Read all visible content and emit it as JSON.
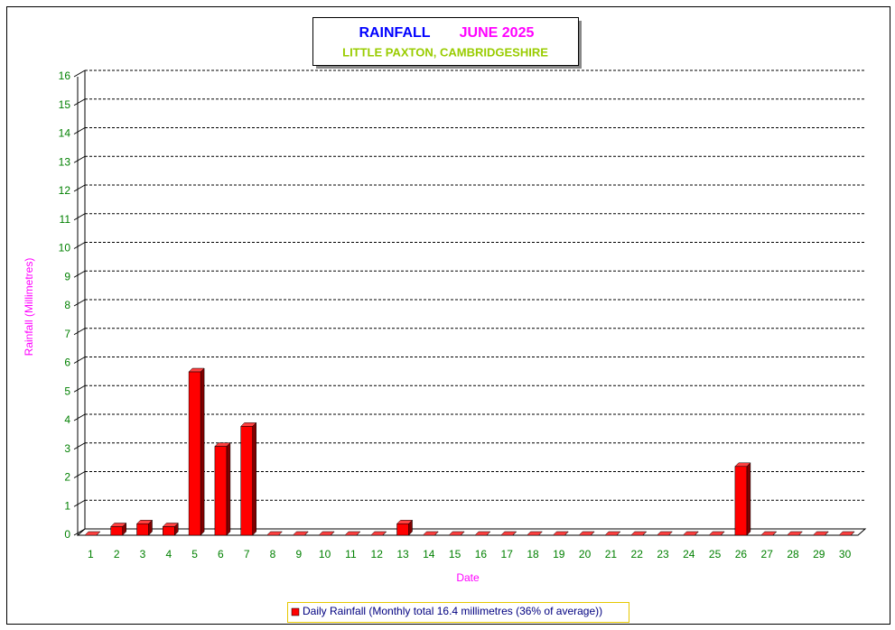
{
  "chart_data": {
    "type": "bar3d",
    "title": "RAINFALL",
    "period": "JUNE 2025",
    "subtitle": "LITTLE PAXTON, CAMBRIDGESHIRE",
    "x_label": "Date",
    "y_label": "Rainfall  (Millimetres)",
    "categories": [
      "1",
      "2",
      "3",
      "4",
      "5",
      "6",
      "7",
      "8",
      "9",
      "10",
      "11",
      "12",
      "13",
      "14",
      "15",
      "16",
      "17",
      "18",
      "19",
      "20",
      "21",
      "22",
      "23",
      "24",
      "25",
      "26",
      "27",
      "28",
      "29",
      "30"
    ],
    "series": [
      {
        "name": "Daily Rainfall (Monthly total 16.4 millimetres (36% of average))",
        "color": "#ff0000",
        "values": [
          0,
          0.3,
          0.4,
          0.3,
          5.7,
          3.1,
          3.8,
          0,
          0,
          0,
          0,
          0,
          0.4,
          0,
          0,
          0,
          0,
          0,
          0,
          0,
          0,
          0,
          0,
          0,
          0,
          2.4,
          0,
          0,
          0,
          0
        ]
      }
    ],
    "ylim": [
      0,
      16
    ],
    "yticks": [
      0,
      1,
      2,
      3,
      4,
      5,
      6,
      7,
      8,
      9,
      10,
      11,
      12,
      13,
      14,
      15,
      16
    ],
    "grid": true
  }
}
